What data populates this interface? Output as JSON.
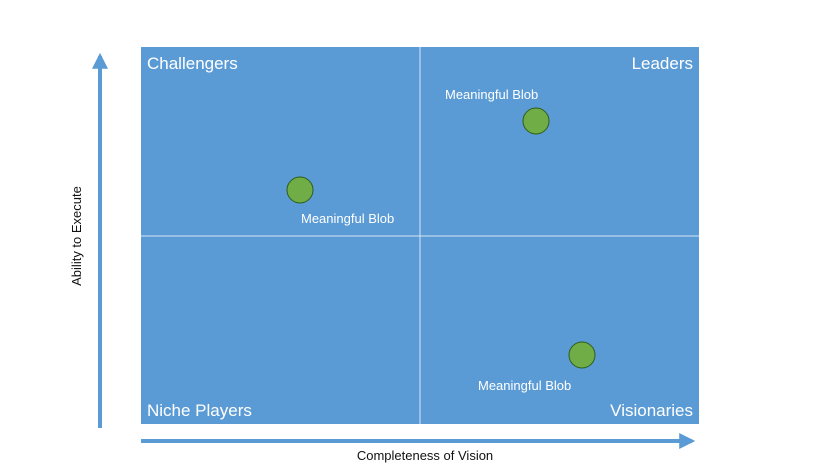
{
  "quadrants": {
    "top_left": "Challengers",
    "top_right": "Leaders",
    "bottom_left": "Niche Players",
    "bottom_right": "Visionaries"
  },
  "axes": {
    "x_label": "Completeness of Vision",
    "y_label": "Ability to Execute"
  },
  "blobs": [
    {
      "label": "Meaningful Blob"
    },
    {
      "label": "Meaningful Blob"
    },
    {
      "label": "Meaningful Blob"
    }
  ],
  "colors": {
    "panel": "#5b9bd5",
    "arrow": "#5b9bd5",
    "blob_fill": "#70ad47",
    "blob_stroke": "#2e5d1a",
    "text_on_panel": "#ffffff"
  }
}
